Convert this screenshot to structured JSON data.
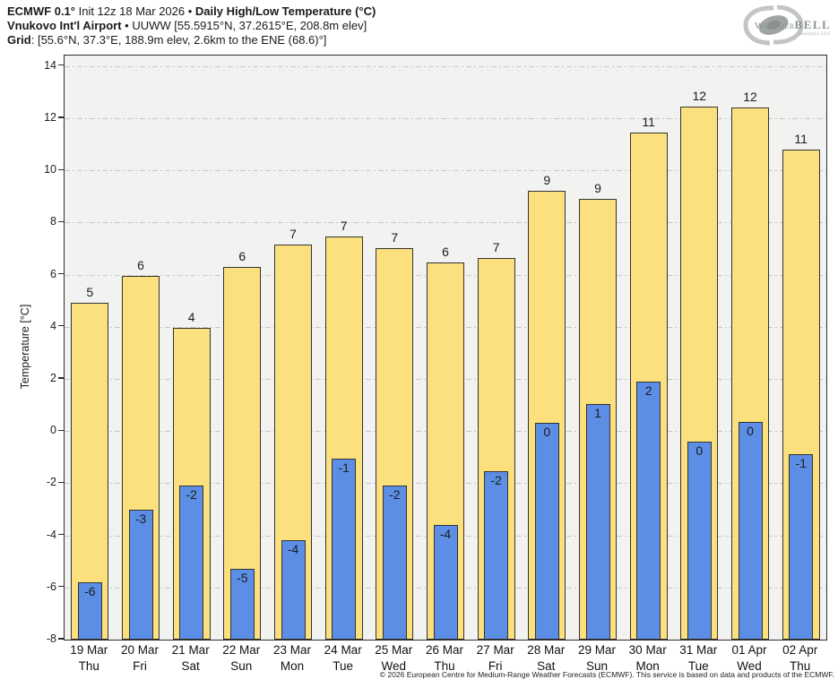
{
  "header": {
    "l1_bold": "ECMWF 0.1°",
    "l1_reg": " Init 12z 18 Mar 2026 • ",
    "l1_bold2": "Daily High/Low Temperature (°C)",
    "l2_bold": "Vnukovo Int'l Airport",
    "l2_reg": " • UUWW [55.5915°N, 37.2615°E, 208.8m elev]",
    "l3_bold": "Grid",
    "l3_reg": ": [55.6°N, 37.3°E, 188.9m elev, 2.6km to the ENE (68.6)°]"
  },
  "logo": {
    "part1": "Weather",
    "part2": "BELL",
    "sub": "Analytics LLC"
  },
  "colors": {
    "high_bar": "#FCE07E",
    "low_bar": "#5C8EE6",
    "bar_border": "#333333",
    "plot_background": "#F2F2F1",
    "gridline": "#C7C7C7",
    "frame": "#2D2D2D",
    "logo_gray": "#9FA4A4"
  },
  "chart_data": {
    "type": "bar",
    "title": "ECMWF 0.1° Init 12z 18 Mar 2026 • Daily High/Low Temperature (°C)",
    "subtitle": "Vnukovo Int'l Airport • UUWW [55.5915°N, 37.2615°E, 208.8m elev]",
    "grid_point": "Grid: [55.6°N, 37.3°E, 188.9m elev, 2.6km to the ENE (68.6)°]",
    "xlabel": "",
    "ylabel": "Temperature [°C]",
    "ylim": [
      -8,
      14.4
    ],
    "yticks": [
      -8,
      -6,
      -4,
      -2,
      0,
      2,
      4,
      6,
      8,
      10,
      12,
      14
    ],
    "grid": "on",
    "legend": "none",
    "categories": [
      "19 Mar",
      "20 Mar",
      "21 Mar",
      "22 Mar",
      "23 Mar",
      "24 Mar",
      "25 Mar",
      "26 Mar",
      "27 Mar",
      "28 Mar",
      "29 Mar",
      "30 Mar",
      "31 Mar",
      "01 Apr",
      "02 Apr"
    ],
    "weekdays": [
      "Thu",
      "Fri",
      "Sat",
      "Sun",
      "Mon",
      "Tue",
      "Wed",
      "Thu",
      "Fri",
      "Sat",
      "Sun",
      "Mon",
      "Tue",
      "Wed",
      "Thu"
    ],
    "series": [
      {
        "name": "Daily High",
        "color": "#FCE07E",
        "values": [
          4.93,
          5.95,
          3.97,
          6.3,
          7.15,
          7.45,
          7.0,
          6.45,
          6.65,
          9.2,
          8.9,
          11.45,
          12.45,
          12.4,
          10.8
        ],
        "labels": [
          "5",
          "6",
          "4",
          "6",
          "7",
          "7",
          "7",
          "6",
          "7",
          "9",
          "9",
          "11",
          "12",
          "12",
          "11"
        ]
      },
      {
        "name": "Daily Low",
        "color": "#5C8EE6",
        "values": [
          -5.8,
          -3.0,
          -2.1,
          -5.3,
          -4.2,
          -1.05,
          -2.1,
          -3.6,
          -1.55,
          0.3,
          1.05,
          1.9,
          -0.4,
          0.35,
          -0.9
        ],
        "labels": [
          "-6",
          "-3",
          "-2",
          "-5",
          "-4",
          "-1",
          "-2",
          "-4",
          "-2",
          "0",
          "1",
          "2",
          "0",
          "0",
          "-1"
        ]
      }
    ]
  },
  "footer": {
    "text": "© 2026 European Centre for Medium-Range Weather Forecasts (ECMWF). This service is based on data and products of the ECMWF."
  }
}
